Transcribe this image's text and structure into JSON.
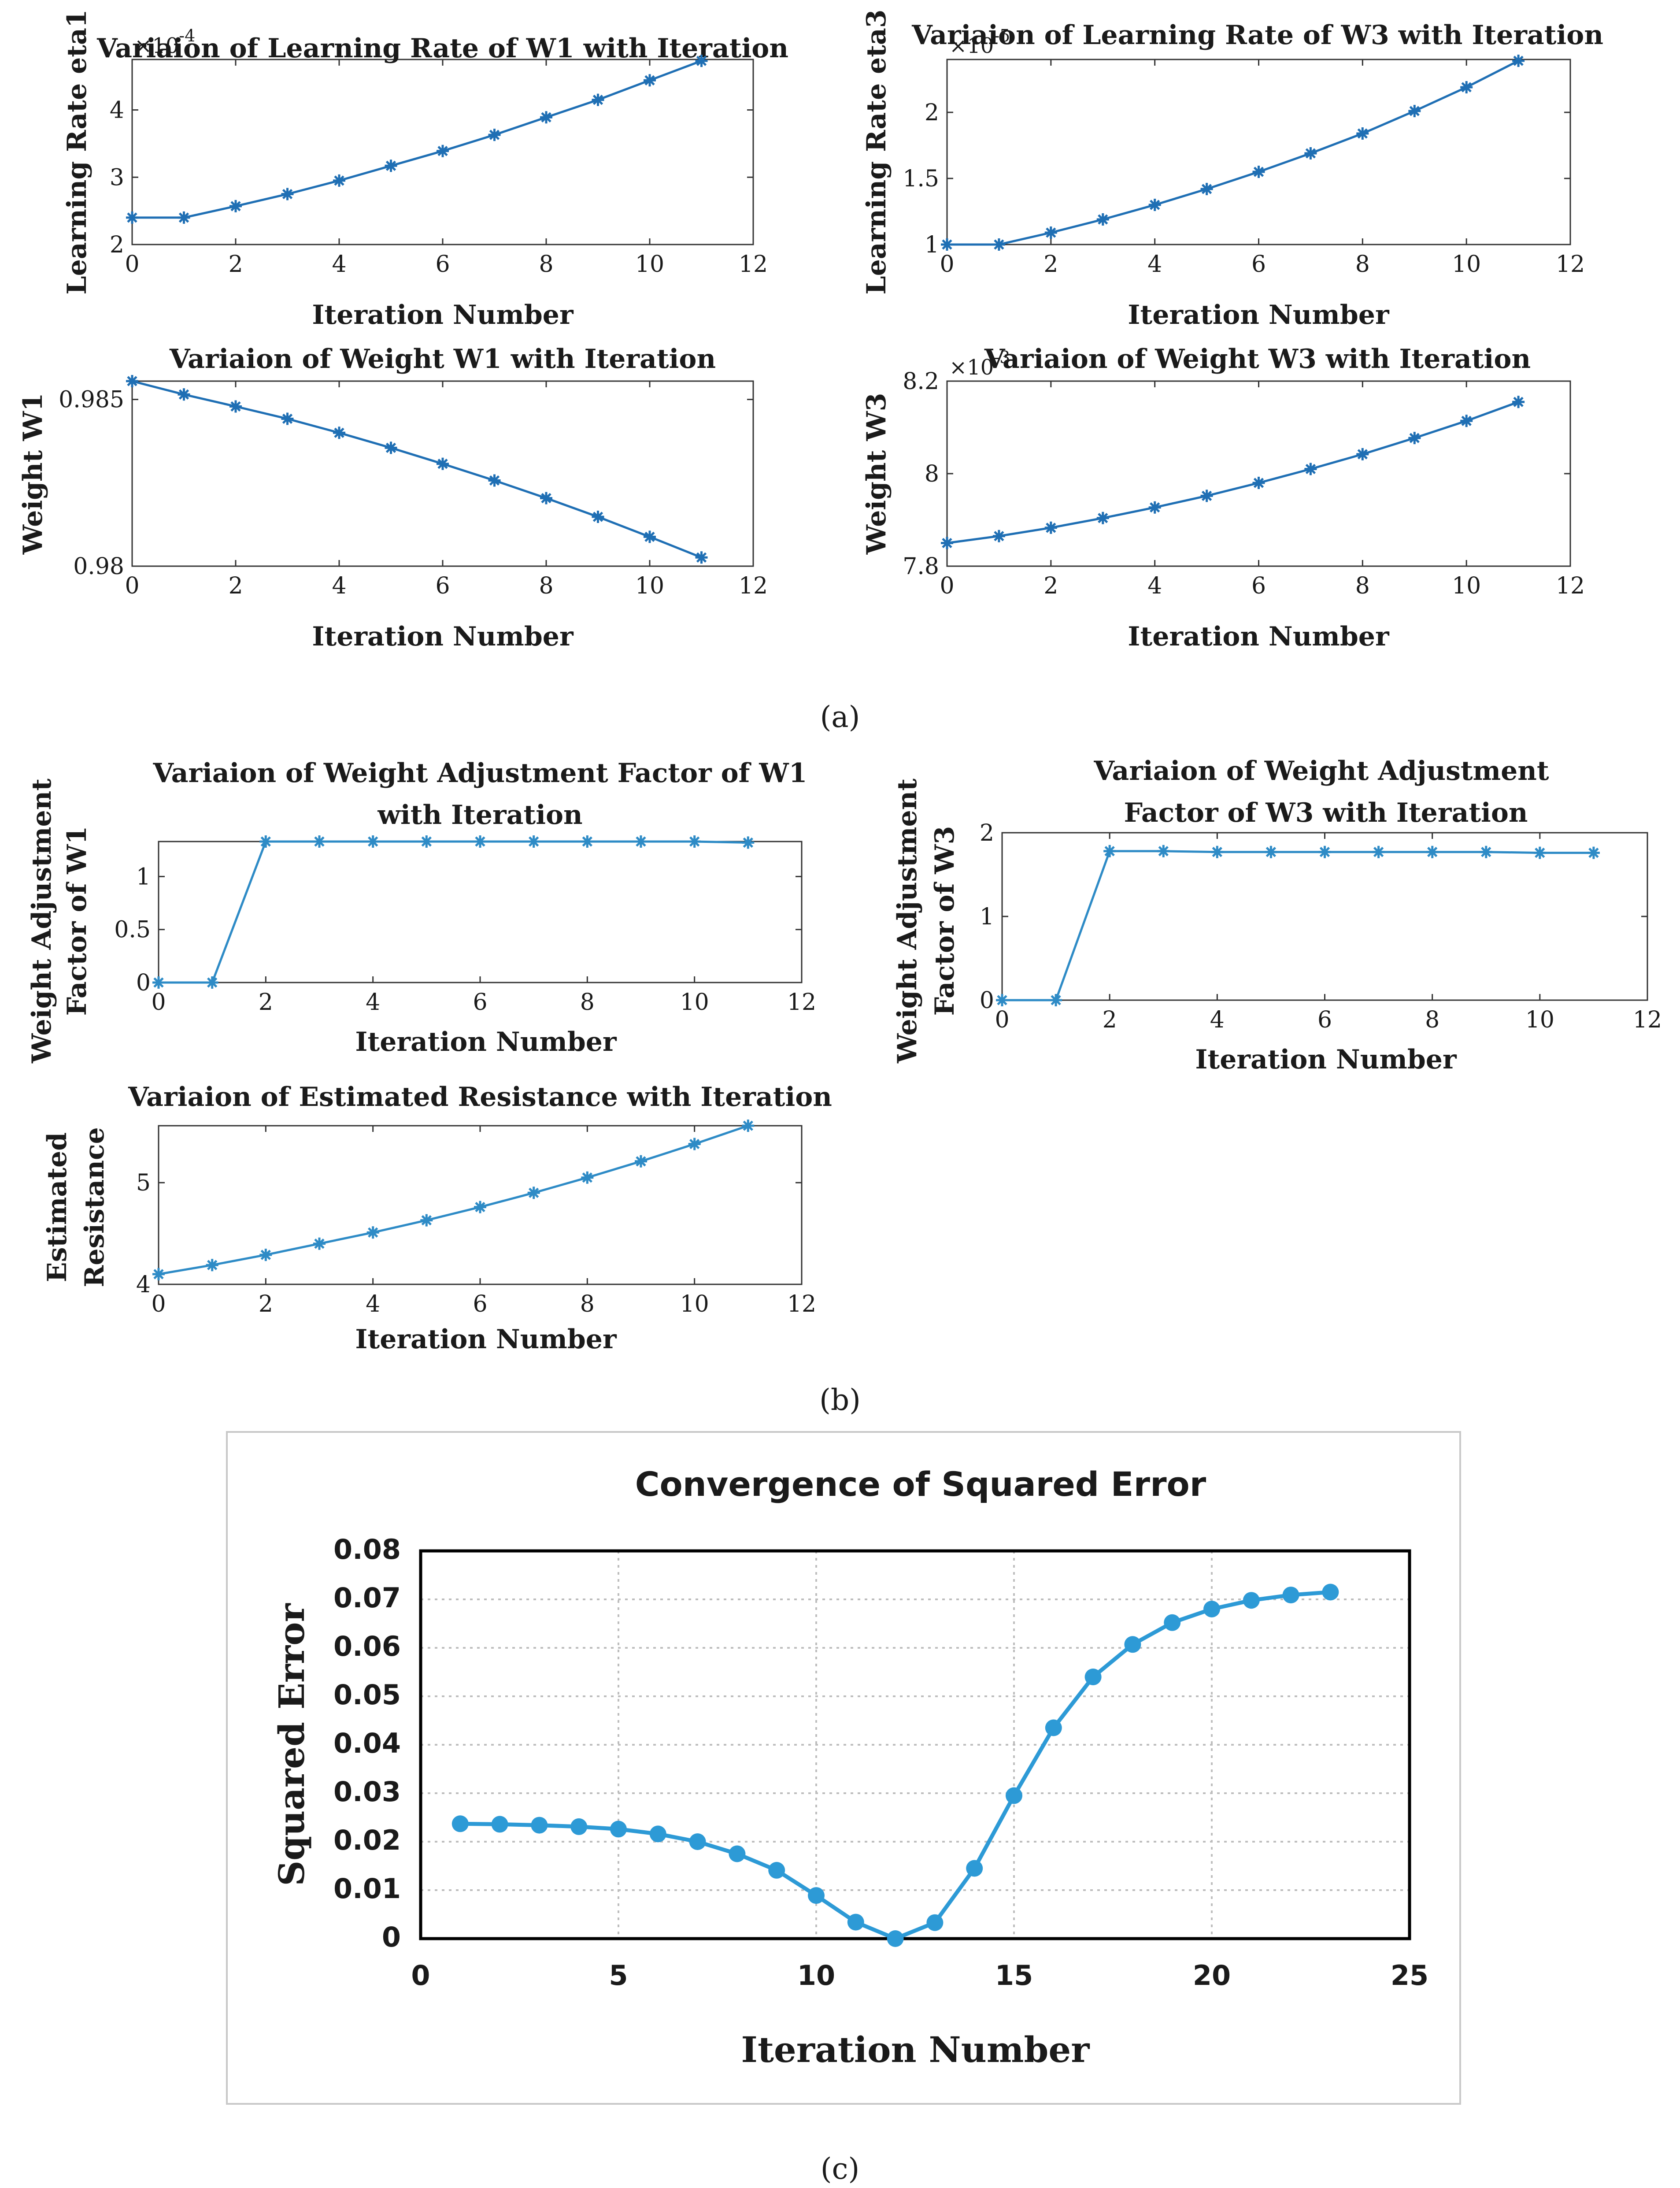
{
  "captions": [
    "(a)",
    "(b)",
    "(c)"
  ],
  "chart_data": [
    {
      "id": "eta1",
      "type": "line",
      "title": "Variaion of Learning Rate of W1  with Iteration",
      "xlabel": "Iteration Number",
      "ylabel": "Learning Rate eta1",
      "exponent_base": "×10",
      "exponent_power": "-4",
      "xlim": [
        0,
        12
      ],
      "ylim": [
        2,
        4.75
      ],
      "xticks": [
        0,
        2,
        4,
        6,
        8,
        10,
        12
      ],
      "xtick_labels": [
        "0",
        "2",
        "4",
        "6",
        "8",
        "10",
        "12"
      ],
      "yticks": [
        2,
        3,
        4
      ],
      "ytick_labels": [
        "2",
        "3",
        "4"
      ],
      "x": [
        0,
        1,
        2,
        3,
        4,
        5,
        6,
        7,
        8,
        9,
        10,
        11
      ],
      "y": [
        2.4,
        2.4,
        2.57,
        2.75,
        2.95,
        3.17,
        3.39,
        3.63,
        3.89,
        4.15,
        4.44,
        4.73
      ],
      "color": "#1f6fb4",
      "marker": "*"
    },
    {
      "id": "eta3",
      "type": "line",
      "title": "Variaion of Learning Rate of W3  with Iteration",
      "xlabel": "Iteration Number",
      "ylabel": "Learning Rate eta3",
      "exponent_base": "×10",
      "exponent_power": "-5",
      "xlim": [
        0,
        12
      ],
      "ylim": [
        1,
        2.4
      ],
      "xticks": [
        0,
        2,
        4,
        6,
        8,
        10,
        12
      ],
      "xtick_labels": [
        "0",
        "2",
        "4",
        "6",
        "8",
        "10",
        "12"
      ],
      "yticks": [
        1,
        1.5,
        2
      ],
      "ytick_labels": [
        "1",
        "1.5",
        "2"
      ],
      "x": [
        0,
        1,
        2,
        3,
        4,
        5,
        6,
        7,
        8,
        9,
        10,
        11
      ],
      "y": [
        1.0,
        1.0,
        1.09,
        1.19,
        1.3,
        1.42,
        1.55,
        1.69,
        1.84,
        2.01,
        2.19,
        2.39
      ],
      "color": "#1f6fb4",
      "marker": "*"
    },
    {
      "id": "w1",
      "type": "line",
      "title": "Variaion of Weight W1  with Iteration",
      "xlabel": "Iteration Number",
      "ylabel": "Weight W1",
      "xlim": [
        0,
        12
      ],
      "ylim": [
        0.98,
        0.98555
      ],
      "xticks": [
        0,
        2,
        4,
        6,
        8,
        10,
        12
      ],
      "xtick_labels": [
        "0",
        "2",
        "4",
        "6",
        "8",
        "10",
        "12"
      ],
      "yticks": [
        0.98,
        0.985
      ],
      "ytick_labels": [
        "0.98",
        "0.985"
      ],
      "x": [
        0,
        1,
        2,
        3,
        4,
        5,
        6,
        7,
        8,
        9,
        10,
        11
      ],
      "y": [
        0.98555,
        0.98515,
        0.98479,
        0.98442,
        0.984,
        0.98355,
        0.98307,
        0.98257,
        0.98204,
        0.98148,
        0.98088,
        0.98026
      ],
      "color": "#1f6fb4",
      "marker": "*"
    },
    {
      "id": "w3",
      "type": "line",
      "title": "Variaion of Weight W3  with Iteration",
      "xlabel": "Iteration Number",
      "ylabel": "Weight W3",
      "exponent_base": "×10",
      "exponent_power": "-3",
      "xlim": [
        0,
        12
      ],
      "ylim": [
        7.8,
        8.2
      ],
      "xticks": [
        0,
        2,
        4,
        6,
        8,
        10,
        12
      ],
      "xtick_labels": [
        "0",
        "2",
        "4",
        "6",
        "8",
        "10",
        "12"
      ],
      "yticks": [
        7.8,
        8,
        8.2
      ],
      "ytick_labels": [
        "7.8",
        "8",
        "8.2"
      ],
      "x": [
        0,
        1,
        2,
        3,
        4,
        5,
        6,
        7,
        8,
        9,
        10,
        11
      ],
      "y": [
        7.85,
        7.865,
        7.883,
        7.904,
        7.927,
        7.952,
        7.98,
        8.01,
        8.042,
        8.077,
        8.114,
        8.155
      ],
      "color": "#1f6fb4",
      "marker": "*"
    },
    {
      "id": "waf1",
      "type": "line",
      "title": "Variaion of Weight Adjustment Factor of  W1",
      "title2": "with Iteration",
      "xlabel": "Iteration Number",
      "ylabel": "Weight Adjustment",
      "ylabel2": "Factor of W1",
      "xlim": [
        0,
        12
      ],
      "ylim": [
        0,
        1.33
      ],
      "xticks": [
        0,
        2,
        4,
        6,
        8,
        10,
        12
      ],
      "xtick_labels": [
        "0",
        "2",
        "4",
        "6",
        "8",
        "10",
        "12"
      ],
      "yticks": [
        0,
        0.5,
        1
      ],
      "ytick_labels": [
        "0",
        "0.5",
        "1"
      ],
      "x": [
        0,
        1,
        2,
        3,
        4,
        5,
        6,
        7,
        8,
        9,
        10,
        11
      ],
      "y": [
        0,
        0,
        1.33,
        1.33,
        1.33,
        1.33,
        1.33,
        1.33,
        1.33,
        1.33,
        1.33,
        1.32
      ],
      "color": "#2e8bc6",
      "marker": "*"
    },
    {
      "id": "waf3",
      "type": "line",
      "title": "Variaion of Weight Adjustment",
      "title2": "Factor of  W3 with Iteration",
      "xlabel": "Iteration Number",
      "ylabel": "Weight Adjustment",
      "ylabel2": "Factor of W3",
      "xlim": [
        0,
        12
      ],
      "ylim": [
        0,
        2
      ],
      "xticks": [
        0,
        2,
        4,
        6,
        8,
        10,
        12
      ],
      "xtick_labels": [
        "0",
        "2",
        "4",
        "6",
        "8",
        "10",
        "12"
      ],
      "yticks": [
        0,
        1,
        2
      ],
      "ytick_labels": [
        "0",
        "1",
        "2"
      ],
      "x": [
        0,
        1,
        2,
        3,
        4,
        5,
        6,
        7,
        8,
        9,
        10,
        11
      ],
      "y": [
        0,
        0,
        1.78,
        1.78,
        1.77,
        1.77,
        1.77,
        1.77,
        1.77,
        1.77,
        1.76,
        1.76
      ],
      "color": "#2e8bc6",
      "marker": "*"
    },
    {
      "id": "res",
      "type": "line",
      "title": "Variaion of Estimated Resistance with Iteration",
      "xlabel": "Iteration Number",
      "ylabel": "Estimated",
      "ylabel2": "Resistance",
      "xlim": [
        0,
        12
      ],
      "ylim": [
        4,
        5.56
      ],
      "xticks": [
        0,
        2,
        4,
        6,
        8,
        10,
        12
      ],
      "xtick_labels": [
        "0",
        "2",
        "4",
        "6",
        "8",
        "10",
        "12"
      ],
      "yticks": [
        4,
        5
      ],
      "ytick_labels": [
        "4",
        "5"
      ],
      "x": [
        0,
        1,
        2,
        3,
        4,
        5,
        6,
        7,
        8,
        9,
        10,
        11
      ],
      "y": [
        4.1,
        4.19,
        4.29,
        4.4,
        4.51,
        4.63,
        4.76,
        4.9,
        5.05,
        5.21,
        5.38,
        5.56
      ],
      "color": "#2e8bc6",
      "marker": "*"
    },
    {
      "id": "sqerr",
      "type": "line",
      "title": "Convergence of Squared Error",
      "xlabel": "Iteration Number",
      "ylabel": "Squared Error",
      "xlim": [
        0,
        25
      ],
      "ylim": [
        0,
        0.08
      ],
      "grid": true,
      "xticks": [
        0,
        5,
        10,
        15,
        20,
        25
      ],
      "xtick_labels": [
        "0",
        "5",
        "10",
        "15",
        "20",
        "25"
      ],
      "yticks": [
        0,
        0.01,
        0.02,
        0.03,
        0.04,
        0.05,
        0.06,
        0.07,
        0.08
      ],
      "ytick_labels": [
        "0",
        "0.01",
        "0.02",
        "0.03",
        "0.04",
        "0.05",
        "0.06",
        "0.07",
        "0.08"
      ],
      "x": [
        1,
        2,
        3,
        4,
        5,
        6,
        7,
        8,
        9,
        10,
        11,
        12,
        13,
        14,
        15,
        16,
        17,
        18,
        19,
        20,
        21,
        22,
        23
      ],
      "y": [
        0.0237,
        0.0236,
        0.0234,
        0.0231,
        0.0226,
        0.0216,
        0.02,
        0.0175,
        0.0141,
        0.0089,
        0.0034,
        0.0,
        0.0033,
        0.0145,
        0.0295,
        0.0435,
        0.054,
        0.0607,
        0.0652,
        0.068,
        0.0698,
        0.0709,
        0.0715
      ],
      "color": "#2d9ad6",
      "marker": "o"
    }
  ]
}
